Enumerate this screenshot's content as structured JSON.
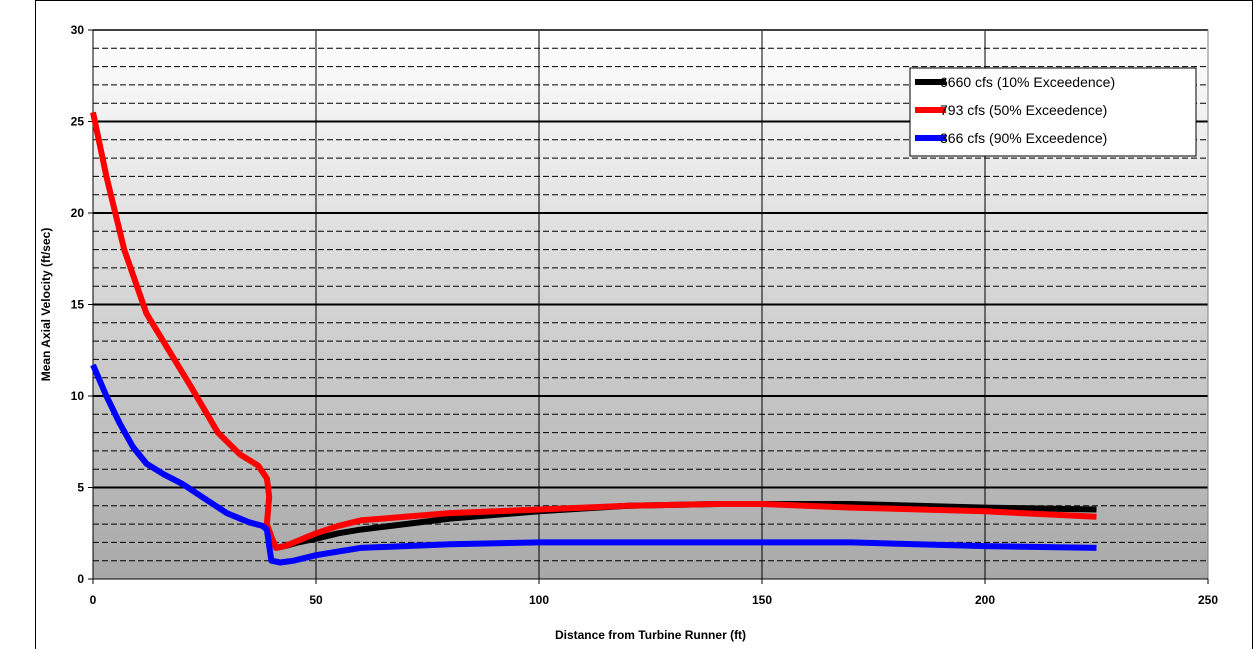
{
  "chart_data": {
    "type": "line",
    "title": "",
    "xlabel": "Distance from Turbine Runner (ft)",
    "ylabel": "Mean Axial Velocity (ft/sec)",
    "xlim": [
      0,
      250
    ],
    "ylim": [
      0,
      30
    ],
    "x_ticks": [
      "0",
      "50",
      "100",
      "150",
      "200",
      "250"
    ],
    "y_ticks": [
      "0",
      "5",
      "10",
      "15",
      "20",
      "25",
      "30"
    ],
    "grid": {
      "major_y": true,
      "minor_y_dashed": true,
      "major_x": true
    },
    "legend": {
      "placement": "top-right"
    },
    "series": [
      {
        "name": "6660 cfs (10% Exceedence)",
        "color": "#000000",
        "x": [
          41,
          43,
          46,
          50,
          55,
          60,
          70,
          80,
          100,
          120,
          140,
          150,
          170,
          200,
          225
        ],
        "y": [
          1.7,
          1.8,
          2.0,
          2.2,
          2.5,
          2.7,
          3.0,
          3.3,
          3.7,
          4.0,
          4.1,
          4.1,
          4.1,
          3.9,
          3.8
        ]
      },
      {
        "name": "793 cfs (50% Exceedence)",
        "color": "#ff0000",
        "x": [
          0,
          3,
          7,
          12,
          17,
          22,
          28,
          33,
          37,
          39,
          39.5,
          39,
          40,
          41,
          43,
          46,
          50,
          55,
          60,
          70,
          80,
          100,
          120,
          140,
          150,
          170,
          200,
          225
        ],
        "y": [
          25.5,
          22,
          18,
          14.5,
          12.5,
          10.5,
          8,
          6.8,
          6.2,
          5.5,
          4.5,
          3.0,
          2.3,
          1.7,
          1.8,
          2.1,
          2.5,
          2.9,
          3.2,
          3.4,
          3.6,
          3.8,
          4.0,
          4.1,
          4.1,
          3.9,
          3.7,
          3.4
        ]
      },
      {
        "name": "366 cfs (90% Exceedence)",
        "color": "#0000ff",
        "x": [
          0,
          3,
          6,
          9,
          12,
          16,
          20,
          25,
          30,
          35,
          38,
          39,
          39.5,
          40,
          42,
          45,
          50,
          55,
          60,
          70,
          80,
          100,
          120,
          140,
          150,
          170,
          200,
          225
        ],
        "y": [
          11.7,
          10,
          8.5,
          7.2,
          6.3,
          5.7,
          5.2,
          4.4,
          3.6,
          3.1,
          2.9,
          2.7,
          1.8,
          1.0,
          0.9,
          1.0,
          1.3,
          1.5,
          1.7,
          1.8,
          1.9,
          2.0,
          2.0,
          2.0,
          2.0,
          2.0,
          1.8,
          1.7
        ]
      }
    ]
  }
}
